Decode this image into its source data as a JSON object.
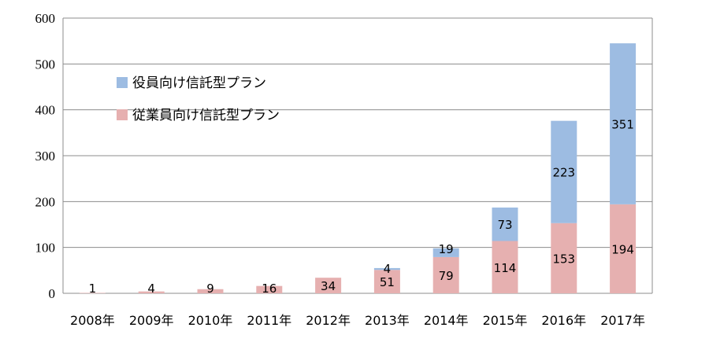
{
  "chart_data": {
    "type": "bar",
    "stacked": true,
    "categories": [
      "2008年",
      "2009年",
      "2010年",
      "2011年",
      "2012年",
      "2013年",
      "2014年",
      "2015年",
      "2016年",
      "2017年"
    ],
    "series": [
      {
        "name": "従業員向け信託型プラン",
        "color": "#e6b0b0",
        "values": [
          1,
          4,
          9,
          16,
          34,
          51,
          79,
          114,
          153,
          194
        ]
      },
      {
        "name": "役員向け信託型プラン",
        "color": "#9dbce2",
        "values": [
          0,
          0,
          0,
          0,
          0,
          4,
          19,
          73,
          223,
          351
        ]
      }
    ],
    "ylim": [
      0,
      600
    ],
    "yticks": [
      0,
      100,
      200,
      300,
      400,
      500,
      600
    ],
    "legend_position": "upper-left",
    "grid": "horizontal"
  }
}
